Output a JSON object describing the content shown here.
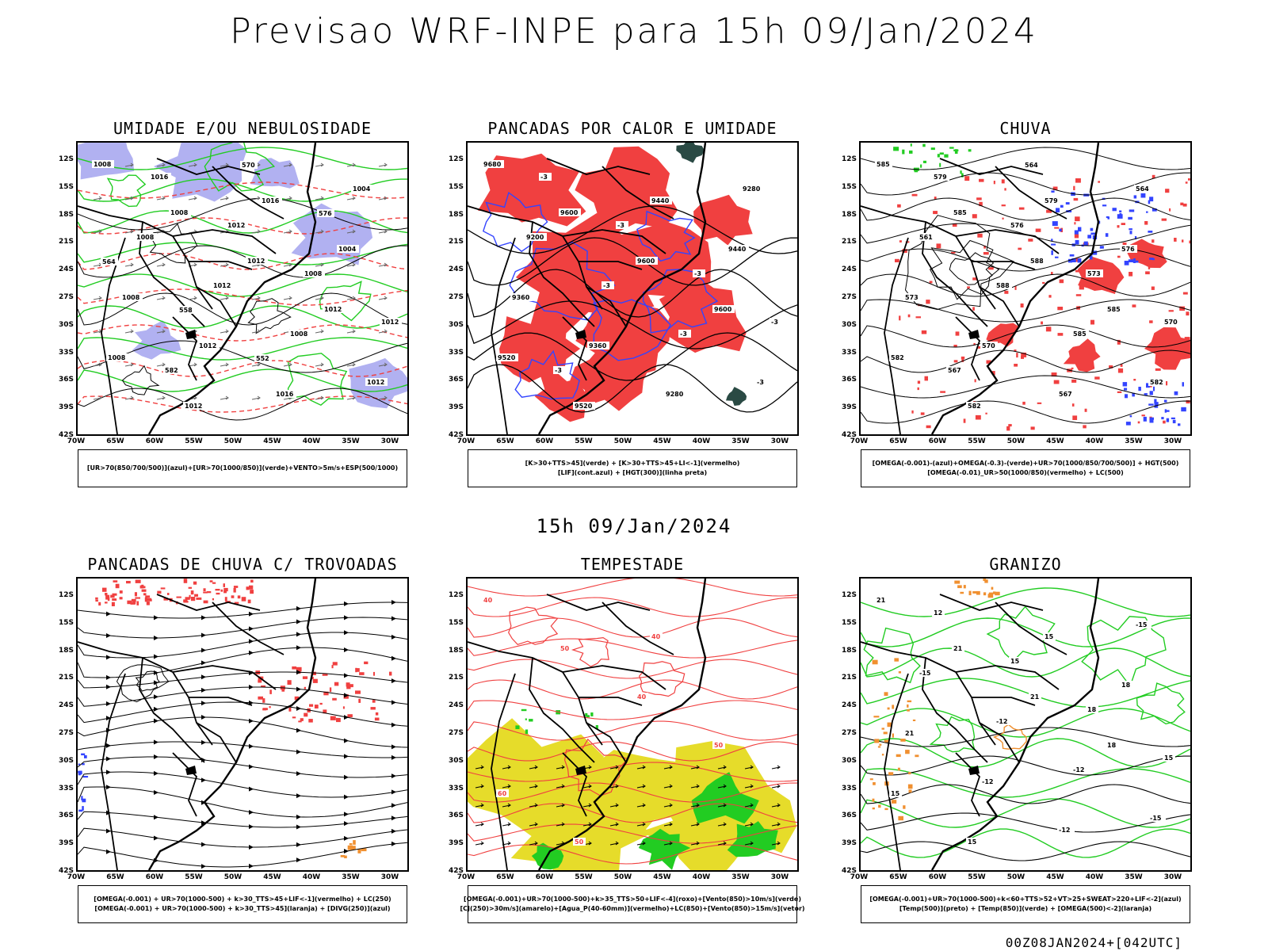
{
  "main_title": "Previsao WRF-INPE  para 15h 09/Jan/2024",
  "mid_title": "15h 09/Jan/2024",
  "footer": "00Z08JAN2024+[042UTC]",
  "lat_labels": [
    "12S",
    "15S",
    "18S",
    "21S",
    "24S",
    "27S",
    "30S",
    "33S",
    "36S",
    "39S",
    "42S"
  ],
  "lon_labels": [
    "70W",
    "65W",
    "60W",
    "55W",
    "50W",
    "45W",
    "40W",
    "35W",
    "30W"
  ],
  "colors": {
    "red": "#f04040",
    "green": "#22cc22",
    "blue": "#3344ff",
    "lavender": "#a8a8f0",
    "yellow": "#e6dc2a",
    "orange": "#f09030",
    "dark_teal": "#2a4a44",
    "black": "#000000"
  },
  "panels": [
    {
      "title": "UMIDADE E/OU NEBULOSIDADE",
      "legend": [
        "[UR>70(850/700/500)](azul)+[UR>70(1000/850)](verde)+VENTO>5m/s+ESP(500/1000)"
      ],
      "contour_labels": [
        "1008",
        "1008",
        "1012",
        "1012",
        "1008",
        "1012",
        "1016",
        "1004",
        "1008",
        "1012",
        "1016",
        "1004",
        "1008",
        "1012",
        "1008",
        "1012",
        "1016",
        "1012",
        "1008",
        "1012",
        "582",
        "570",
        "576",
        "564",
        "558",
        "552"
      ]
    },
    {
      "title": "PANCADAS POR CALOR E UMIDADE",
      "legend": [
        "[K>30+TTS>45](verde) + [K>30+TTS>45+LI<-1](vermelho)",
        "[LIF](cont.azul) + [HGT(300)](linha preta)"
      ],
      "contour_labels": [
        "9680",
        "9600",
        "9600",
        "9600",
        "9520",
        "9520",
        "9440",
        "9440",
        "9360",
        "9360",
        "9280",
        "9280",
        "9200",
        "-3",
        "-3",
        "-3",
        "-3",
        "-3",
        "-3",
        "-3",
        "-3"
      ]
    },
    {
      "title": "CHUVA",
      "legend": [
        "[OMEGA(-0.001)-(azul)+OMEGA(-0.3)-(verde)+UR>70(1000/850/700/500)] + HGT(500)",
        "[OMEGA(-0.01)_UR>50(1000/850)(vermelho) + LC(500)"
      ],
      "contour_labels": [
        "585",
        "585",
        "588",
        "585",
        "582",
        "582",
        "579",
        "576",
        "573",
        "570",
        "567",
        "564",
        "561",
        "588",
        "585",
        "582",
        "579",
        "576",
        "573",
        "570",
        "567",
        "564"
      ]
    },
    {
      "title": "PANCADAS DE CHUVA C/ TROVOADAS",
      "legend": [
        "[OMEGA(-0.001) + UR>70(1000-500) + k>30_TTS>45+LIF<-1](vermelho) + LC(250)",
        "[OMEGA(-0.001) + UR>70(1000-500) + k>30_TTS>45](laranja) + [DIVG(250)](azul)"
      ],
      "contour_labels": []
    },
    {
      "title": "TEMPESTADE",
      "legend": [
        "[OMEGA(-0.001)+UR>70(1000-500)+k>35_TTS>50+LIF<-4](roxo)+[Vento(850)>10m/s](verde)",
        "[CJ(250)>30m/s](amarelo)+[Agua_P(40-60mm)](vermelho)+LC(850)+[Vento(850)>15m/s](vetor)"
      ],
      "contour_labels": [
        "40",
        "50",
        "40",
        "50",
        "60",
        "50",
        "40"
      ]
    },
    {
      "title": "GRANIZO",
      "legend": [
        "[OMEGA(-0.001)+UR>70(1000-500)+k<60+TTS>52+VT>25+SWEAT>220+LIF<-2](azul)",
        "[Temp(500)](preto) + [Temp(850)](verde) + [OMEGA(500)<-2](laranja)"
      ],
      "contour_labels": [
        "21",
        "21",
        "21",
        "18",
        "15",
        "15",
        "15",
        "18",
        "21",
        "-12",
        "-12",
        "-15",
        "-15",
        "-12",
        "-12",
        "-15",
        "12",
        "15",
        "18",
        "15"
      ]
    }
  ]
}
